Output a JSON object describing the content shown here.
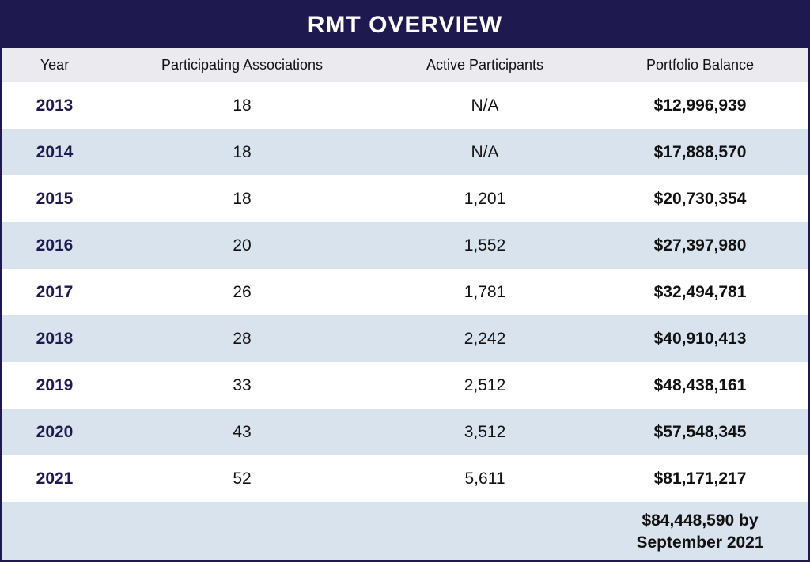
{
  "title": "RMT OVERVIEW",
  "chart_data": {
    "type": "table",
    "title": "RMT OVERVIEW",
    "columns": [
      "Year",
      "Participating Associations",
      "Active Participants",
      "Portfolio Balance"
    ],
    "rows": [
      {
        "year": "2013",
        "associations": "18",
        "participants": "N/A",
        "balance": "$12,996,939"
      },
      {
        "year": "2014",
        "associations": "18",
        "participants": "N/A",
        "balance": "$17,888,570"
      },
      {
        "year": "2015",
        "associations": "18",
        "participants": "1,201",
        "balance": "$20,730,354"
      },
      {
        "year": "2016",
        "associations": "20",
        "participants": "1,552",
        "balance": "$27,397,980"
      },
      {
        "year": "2017",
        "associations": "26",
        "participants": "1,781",
        "balance": "$32,494,781"
      },
      {
        "year": "2018",
        "associations": "28",
        "participants": "2,242",
        "balance": "$40,910,413"
      },
      {
        "year": "2019",
        "associations": "33",
        "participants": "2,512",
        "balance": "$48,438,161"
      },
      {
        "year": "2020",
        "associations": "43",
        "participants": "3,512",
        "balance": "$57,548,345"
      },
      {
        "year": "2021",
        "associations": "52",
        "participants": "5,611",
        "balance": "$81,171,217"
      }
    ],
    "footer_note": [
      "$84,448,590 by",
      "September 2021"
    ]
  },
  "colors": {
    "title_bg": "#1e1a4f",
    "header_bg": "#ebeaef",
    "stripe": "#d9e3ee",
    "year_text": "#1e1a4f"
  }
}
